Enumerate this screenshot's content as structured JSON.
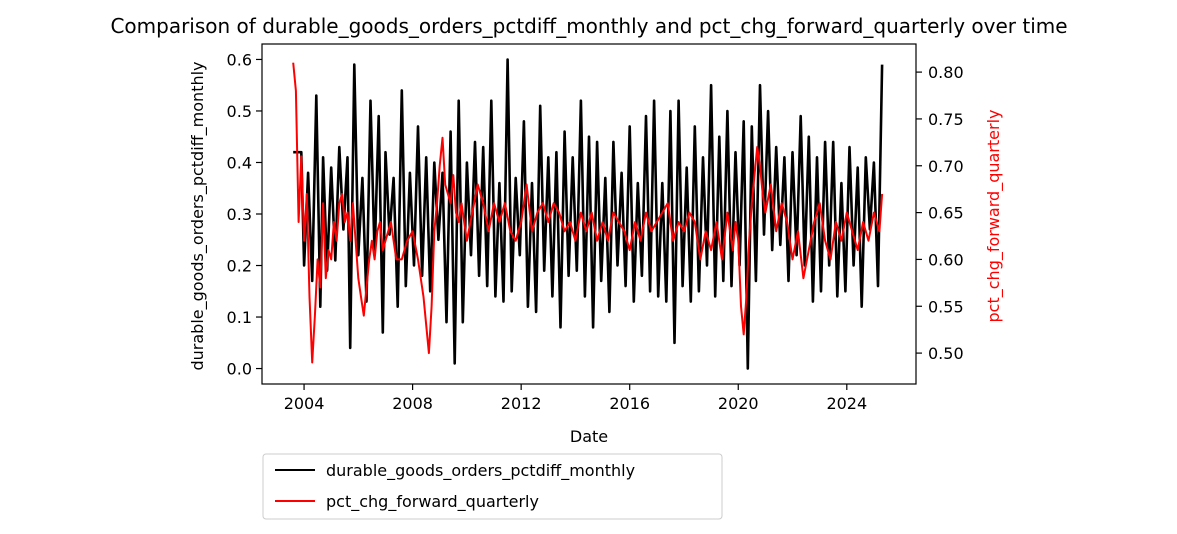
{
  "chart_data": {
    "type": "line",
    "title": "Comparison of durable_goods_orders_pctdiff_monthly and pct_chg_forward_quarterly over time",
    "xlabel": "Date",
    "ylabel_left": "durable_goods_orders_pctdiff_monthly",
    "ylabel_right": "pct_chg_forward_quarterly",
    "xlim": [
      2002.45,
      2026.55
    ],
    "ylim_left": [
      -0.03,
      0.63
    ],
    "ylim_right": [
      0.467,
      0.83
    ],
    "x_ticks": [
      2004,
      2008,
      2012,
      2016,
      2020,
      2024
    ],
    "x_tick_labels": [
      "2004",
      "2008",
      "2012",
      "2016",
      "2020",
      "2024"
    ],
    "y_ticks_left": [
      0.0,
      0.1,
      0.2,
      0.3,
      0.4,
      0.5,
      0.6
    ],
    "y_tick_labels_left": [
      "0.0",
      "0.1",
      "0.2",
      "0.3",
      "0.4",
      "0.5",
      "0.6"
    ],
    "y_ticks_right": [
      0.5,
      0.55,
      0.6,
      0.65,
      0.7,
      0.75,
      0.8
    ],
    "y_tick_labels_right": [
      "0.50",
      "0.55",
      "0.60",
      "0.65",
      "0.70",
      "0.75",
      "0.80"
    ],
    "grid": false,
    "legend_placement": "below-left",
    "series": [
      {
        "name": "durable_goods_orders_pctdiff_monthly",
        "axis": "left",
        "color": "#000000",
        "x": [
          2003.6,
          2003.9,
          2004.0,
          2004.15,
          2004.3,
          2004.45,
          2004.6,
          2004.7,
          2004.85,
          2005.0,
          2005.15,
          2005.3,
          2005.45,
          2005.6,
          2005.7,
          2005.85,
          2006.0,
          2006.15,
          2006.3,
          2006.45,
          2006.6,
          2006.75,
          2006.9,
          2007.0,
          2007.15,
          2007.3,
          2007.45,
          2007.6,
          2007.75,
          2007.9,
          2008.05,
          2008.2,
          2008.35,
          2008.5,
          2008.65,
          2008.8,
          2008.95,
          2009.1,
          2009.25,
          2009.4,
          2009.55,
          2009.7,
          2009.85,
          2010.0,
          2010.15,
          2010.3,
          2010.45,
          2010.6,
          2010.75,
          2010.9,
          2011.05,
          2011.2,
          2011.35,
          2011.5,
          2011.65,
          2011.8,
          2011.95,
          2012.1,
          2012.25,
          2012.4,
          2012.55,
          2012.7,
          2012.85,
          2013.0,
          2013.15,
          2013.3,
          2013.45,
          2013.6,
          2013.75,
          2013.9,
          2014.05,
          2014.2,
          2014.35,
          2014.5,
          2014.65,
          2014.8,
          2014.95,
          2015.1,
          2015.25,
          2015.4,
          2015.55,
          2015.7,
          2015.85,
          2016.0,
          2016.15,
          2016.3,
          2016.45,
          2016.6,
          2016.75,
          2016.9,
          2017.05,
          2017.2,
          2017.35,
          2017.5,
          2017.65,
          2017.8,
          2017.95,
          2018.1,
          2018.25,
          2018.4,
          2018.55,
          2018.7,
          2018.85,
          2019.0,
          2019.15,
          2019.3,
          2019.45,
          2019.6,
          2019.75,
          2019.9,
          2020.05,
          2020.2,
          2020.35,
          2020.5,
          2020.65,
          2020.8,
          2020.95,
          2021.1,
          2021.25,
          2021.4,
          2021.55,
          2021.7,
          2021.85,
          2022.0,
          2022.15,
          2022.3,
          2022.45,
          2022.6,
          2022.75,
          2022.9,
          2023.05,
          2023.2,
          2023.35,
          2023.5,
          2023.65,
          2023.8,
          2023.95,
          2024.1,
          2024.25,
          2024.4,
          2024.55,
          2024.7,
          2024.85,
          2025.0,
          2025.15,
          2025.3
        ],
        "y": [
          0.42,
          0.42,
          0.2,
          0.38,
          0.17,
          0.53,
          0.12,
          0.41,
          0.19,
          0.39,
          0.21,
          0.43,
          0.27,
          0.41,
          0.04,
          0.59,
          0.22,
          0.37,
          0.13,
          0.52,
          0.22,
          0.49,
          0.07,
          0.42,
          0.26,
          0.37,
          0.12,
          0.54,
          0.16,
          0.38,
          0.2,
          0.47,
          0.18,
          0.41,
          0.15,
          0.4,
          0.25,
          0.38,
          0.09,
          0.46,
          0.01,
          0.52,
          0.09,
          0.4,
          0.22,
          0.44,
          0.18,
          0.43,
          0.16,
          0.52,
          0.14,
          0.36,
          0.13,
          0.6,
          0.15,
          0.37,
          0.22,
          0.48,
          0.12,
          0.36,
          0.11,
          0.51,
          0.19,
          0.41,
          0.14,
          0.42,
          0.08,
          0.46,
          0.18,
          0.41,
          0.19,
          0.52,
          0.14,
          0.45,
          0.08,
          0.44,
          0.17,
          0.37,
          0.11,
          0.44,
          0.2,
          0.38,
          0.16,
          0.47,
          0.13,
          0.36,
          0.18,
          0.49,
          0.15,
          0.52,
          0.14,
          0.36,
          0.13,
          0.5,
          0.05,
          0.52,
          0.16,
          0.39,
          0.13,
          0.47,
          0.15,
          0.41,
          0.2,
          0.55,
          0.14,
          0.45,
          0.17,
          0.5,
          0.16,
          0.42,
          0.2,
          0.48,
          0.0,
          0.47,
          0.17,
          0.55,
          0.26,
          0.5,
          0.23,
          0.43,
          0.24,
          0.41,
          0.17,
          0.42,
          0.22,
          0.49,
          0.2,
          0.45,
          0.13,
          0.41,
          0.15,
          0.44,
          0.2,
          0.44,
          0.14,
          0.36,
          0.15,
          0.43,
          0.2,
          0.39,
          0.12,
          0.41,
          0.27,
          0.4,
          0.16,
          0.59
        ]
      },
      {
        "name": "pct_chg_forward_quarterly",
        "axis": "right",
        "color": "#ff0000",
        "x": [
          2003.6,
          2003.7,
          2003.8,
          2003.9,
          2004.0,
          2004.1,
          2004.2,
          2004.3,
          2004.4,
          2004.5,
          2004.6,
          2004.7,
          2004.8,
          2004.9,
          2005.0,
          2005.1,
          2005.2,
          2005.3,
          2005.4,
          2005.5,
          2005.6,
          2005.7,
          2005.8,
          2005.9,
          2006.0,
          2006.1,
          2006.2,
          2006.3,
          2006.4,
          2006.5,
          2006.6,
          2006.7,
          2006.8,
          2006.9,
          2007.0,
          2007.2,
          2007.4,
          2007.6,
          2007.8,
          2008.0,
          2008.2,
          2008.4,
          2008.6,
          2008.7,
          2008.8,
          2008.9,
          2009.0,
          2009.1,
          2009.2,
          2009.3,
          2009.4,
          2009.5,
          2009.6,
          2009.7,
          2009.8,
          2010.0,
          2010.2,
          2010.4,
          2010.6,
          2010.8,
          2011.0,
          2011.2,
          2011.4,
          2011.6,
          2011.8,
          2012.0,
          2012.2,
          2012.4,
          2012.6,
          2012.8,
          2013.0,
          2013.2,
          2013.4,
          2013.6,
          2013.8,
          2014.0,
          2014.2,
          2014.4,
          2014.6,
          2014.8,
          2015.0,
          2015.2,
          2015.4,
          2015.6,
          2015.8,
          2016.0,
          2016.2,
          2016.4,
          2016.6,
          2016.8,
          2017.0,
          2017.2,
          2017.4,
          2017.6,
          2017.8,
          2018.0,
          2018.2,
          2018.4,
          2018.6,
          2018.8,
          2019.0,
          2019.2,
          2019.4,
          2019.6,
          2019.8,
          2019.9,
          2020.0,
          2020.1,
          2020.2,
          2020.3,
          2020.4,
          2020.5,
          2020.6,
          2020.7,
          2020.8,
          2020.9,
          2021.0,
          2021.2,
          2021.4,
          2021.6,
          2021.8,
          2022.0,
          2022.2,
          2022.4,
          2022.6,
          2022.8,
          2023.0,
          2023.2,
          2023.4,
          2023.6,
          2023.8,
          2024.0,
          2024.2,
          2024.4,
          2024.6,
          2024.8,
          2025.0,
          2025.2,
          2025.3
        ],
        "y": [
          0.81,
          0.78,
          0.64,
          0.71,
          0.62,
          0.67,
          0.56,
          0.49,
          0.54,
          0.6,
          0.57,
          0.66,
          0.58,
          0.61,
          0.6,
          0.64,
          0.62,
          0.66,
          0.67,
          0.64,
          0.65,
          0.62,
          0.66,
          0.62,
          0.58,
          0.56,
          0.54,
          0.57,
          0.6,
          0.62,
          0.6,
          0.63,
          0.64,
          0.61,
          0.62,
          0.64,
          0.6,
          0.6,
          0.62,
          0.63,
          0.6,
          0.56,
          0.5,
          0.55,
          0.63,
          0.66,
          0.7,
          0.73,
          0.68,
          0.67,
          0.66,
          0.69,
          0.65,
          0.64,
          0.66,
          0.62,
          0.65,
          0.68,
          0.66,
          0.63,
          0.66,
          0.64,
          0.66,
          0.63,
          0.62,
          0.64,
          0.68,
          0.63,
          0.65,
          0.66,
          0.64,
          0.66,
          0.65,
          0.63,
          0.64,
          0.62,
          0.65,
          0.63,
          0.65,
          0.62,
          0.64,
          0.62,
          0.65,
          0.64,
          0.63,
          0.61,
          0.64,
          0.62,
          0.65,
          0.63,
          0.64,
          0.65,
          0.66,
          0.62,
          0.64,
          0.63,
          0.65,
          0.64,
          0.6,
          0.63,
          0.61,
          0.64,
          0.6,
          0.65,
          0.61,
          0.64,
          0.62,
          0.55,
          0.52,
          0.56,
          0.62,
          0.66,
          0.69,
          0.72,
          0.7,
          0.67,
          0.65,
          0.68,
          0.63,
          0.66,
          0.64,
          0.6,
          0.63,
          0.58,
          0.61,
          0.64,
          0.66,
          0.62,
          0.6,
          0.64,
          0.62,
          0.65,
          0.63,
          0.61,
          0.64,
          0.62,
          0.65,
          0.63,
          0.67
        ]
      }
    ]
  }
}
